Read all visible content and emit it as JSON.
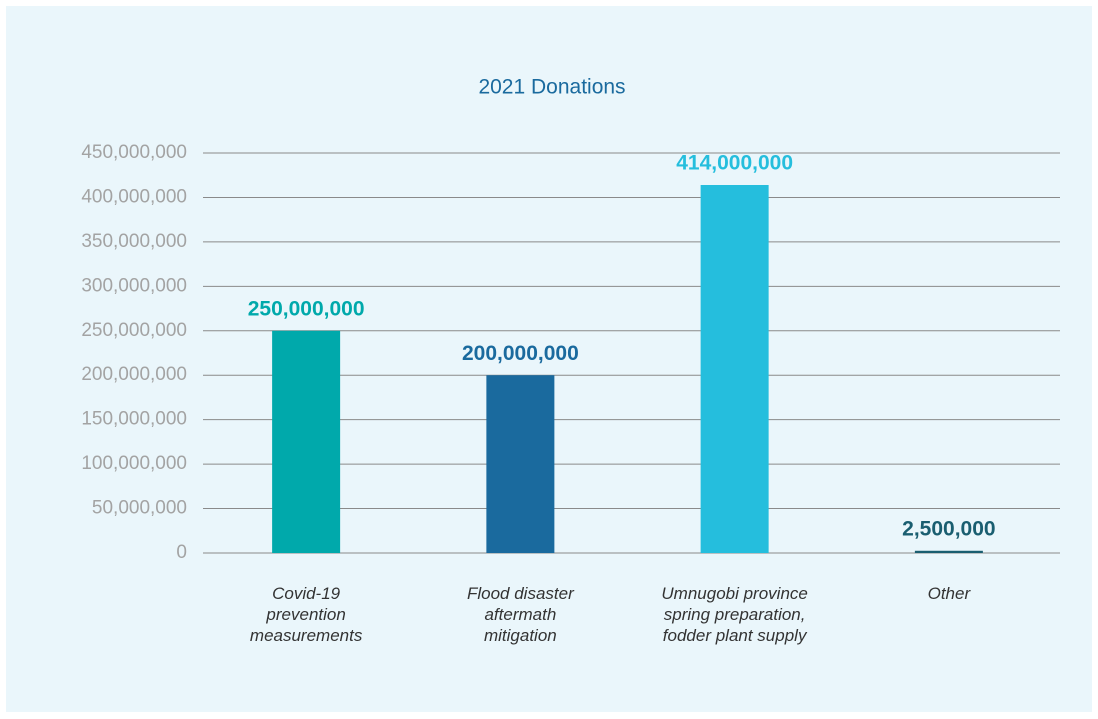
{
  "chart_data": {
    "type": "bar",
    "title": "2021 Donations",
    "categories": [
      "Covid-19\nprevention\nmeasurements",
      "Flood disaster\naftermath\nmitigation",
      "Umnugobi province\nspring preparation,\nfodder plant supply",
      "Other"
    ],
    "values": [
      250000000,
      200000000,
      414000000,
      2500000
    ],
    "value_labels": [
      "250,000,000",
      "200,000,000",
      "414,000,000",
      "2,500,000"
    ],
    "colors": [
      "#00a9ab",
      "#1a6a9e",
      "#25bedd",
      "#1a5e70"
    ],
    "ylim": [
      0,
      450000000
    ],
    "yticks": [
      0,
      {
        "value": 50000000,
        "label": "50,000,000"
      },
      {
        "value": 100000000,
        "label": "100,000,000"
      },
      {
        "value": 150000000,
        "label": "150,000,000"
      },
      {
        "value": 200000000,
        "label": "200,000,000"
      },
      {
        "value": 250000000,
        "label": "250,000,000"
      },
      {
        "value": 300000000,
        "label": "300,000,000"
      },
      {
        "value": 350000000,
        "label": "350,000,000"
      },
      {
        "value": 400000000,
        "label": "400,000,000"
      },
      {
        "value": 450000000,
        "label": "450,000,000"
      }
    ],
    "grid": true
  }
}
